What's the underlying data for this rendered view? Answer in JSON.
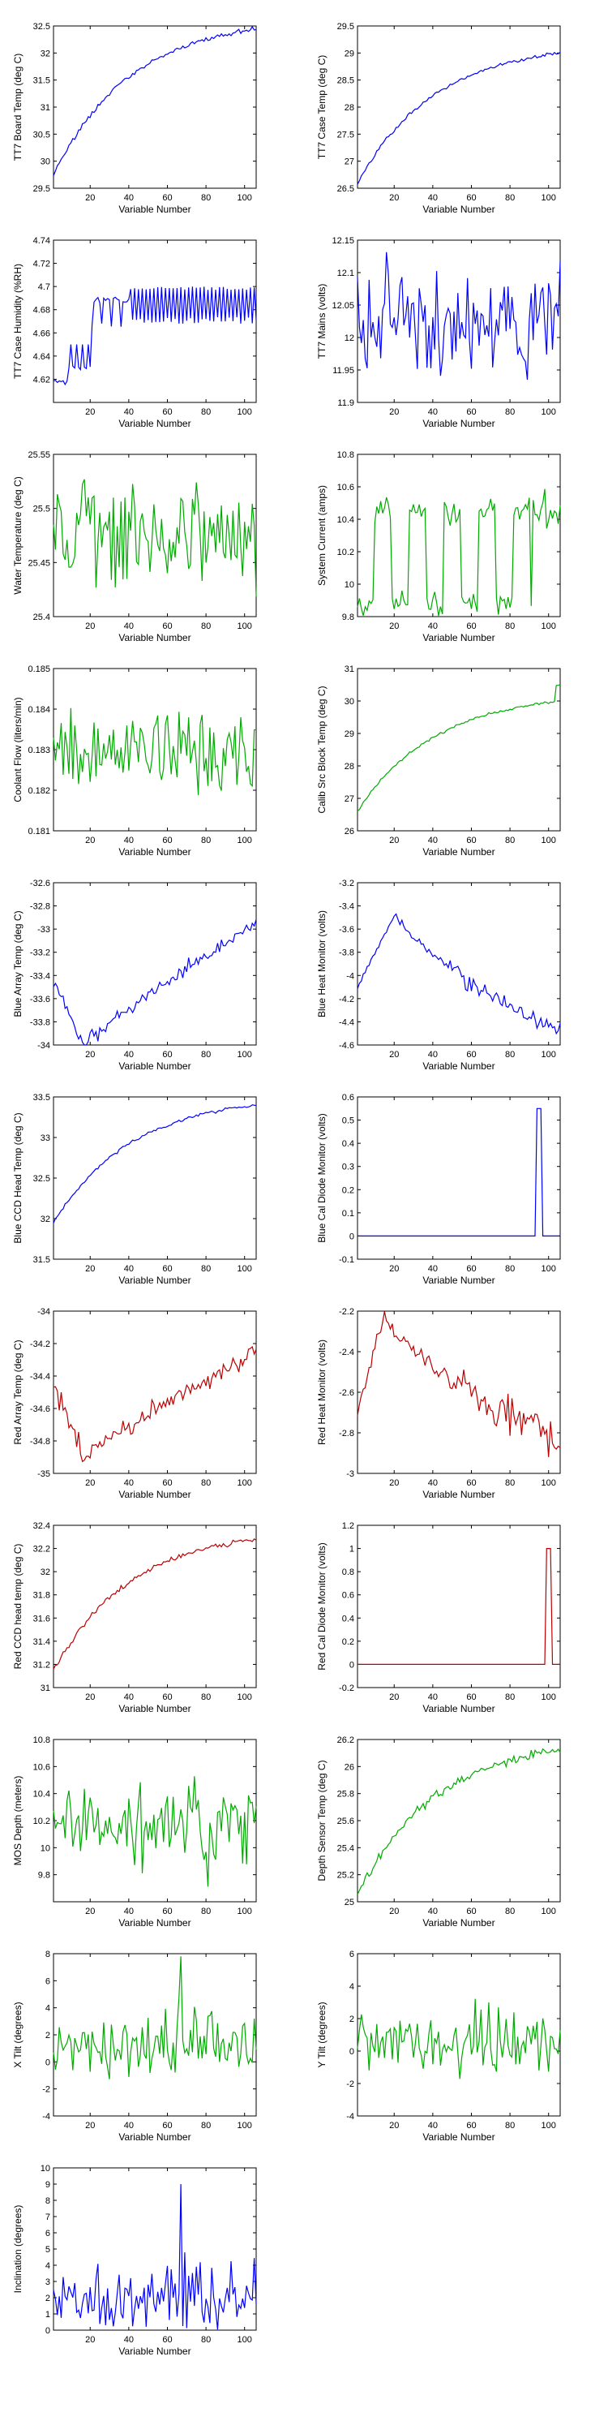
{
  "series_colors": {
    "blue": "#0000ff",
    "green": "#00aa00",
    "red": "#bb0000"
  },
  "chart_data": [
    {
      "id": "tt7-board-temp",
      "type": "line",
      "color": "blue",
      "ylabel": "TT7 Board Temp (deg C)",
      "xlabel": "Variable Number",
      "xlim": [
        1,
        106
      ],
      "xticks": [
        20,
        40,
        60,
        80,
        100
      ],
      "ylim": [
        29.5,
        32.5
      ],
      "yticks": [
        29.5,
        30,
        30.5,
        31,
        31.5,
        32,
        32.5
      ],
      "profile": "rise",
      "start": 29.75,
      "end": 32.45,
      "noise": 0.04
    },
    {
      "id": "tt7-case-temp",
      "type": "line",
      "color": "blue",
      "ylabel": "TT7 Case Temp (deg C)",
      "xlabel": "Variable Number",
      "xlim": [
        1,
        106
      ],
      "xticks": [
        20,
        40,
        60,
        80,
        100
      ],
      "ylim": [
        26.5,
        29.5
      ],
      "yticks": [
        26.5,
        27,
        27.5,
        28,
        28.5,
        29,
        29.5
      ],
      "profile": "rise",
      "start": 26.6,
      "end": 29.0,
      "noise": 0.03
    },
    {
      "id": "tt7-case-humidity",
      "type": "line",
      "color": "blue",
      "ylabel": "TT7 Case Humidity (%RH)",
      "xlabel": "Variable Number",
      "xlim": [
        1,
        106
      ],
      "xticks": [
        20,
        40,
        60,
        80,
        100
      ],
      "ylim": [
        4.6,
        4.74
      ],
      "yticks": [
        4.62,
        4.64,
        4.66,
        4.68,
        4.7,
        4.72,
        4.74
      ],
      "profile": "humidity"
    },
    {
      "id": "tt7-mains",
      "type": "line",
      "color": "blue",
      "ylabel": "TT7 Mains (volts)",
      "xlabel": "Variable Number",
      "xlim": [
        1,
        106
      ],
      "xticks": [
        20,
        40,
        60,
        80,
        100
      ],
      "ylim": [
        11.9,
        12.15
      ],
      "yticks": [
        11.9,
        11.95,
        12,
        12.05,
        12.1,
        12.15
      ],
      "profile": "noise",
      "mean": 12.03,
      "amp": 0.09
    },
    {
      "id": "water-temperature",
      "type": "line",
      "color": "green",
      "ylabel": "Water Temperature (deg C)",
      "xlabel": "Variable Number",
      "xlim": [
        1,
        106
      ],
      "xticks": [
        20,
        40,
        60,
        80,
        100
      ],
      "ylim": [
        25.4,
        25.55
      ],
      "yticks": [
        25.4,
        25.45,
        25.5,
        25.55
      ],
      "profile": "noise",
      "mean": 25.475,
      "amp": 0.06
    },
    {
      "id": "system-current",
      "type": "line",
      "color": "green",
      "ylabel": "System Current (amps)",
      "xlabel": "Variable Number",
      "xlim": [
        1,
        106
      ],
      "xticks": [
        20,
        40,
        60,
        80,
        100
      ],
      "ylim": [
        9.8,
        10.8
      ],
      "yticks": [
        9.8,
        10,
        10.2,
        10.4,
        10.6,
        10.8
      ],
      "profile": "square",
      "low": 9.88,
      "high": 10.45
    },
    {
      "id": "coolant-flow",
      "type": "line",
      "color": "green",
      "ylabel": "Coolant Flow (liters/min)",
      "xlabel": "Variable Number",
      "xlim": [
        1,
        106
      ],
      "xticks": [
        20,
        40,
        60,
        80,
        100
      ],
      "ylim": [
        0.181,
        0.185
      ],
      "yticks": [
        0.181,
        0.182,
        0.183,
        0.184,
        0.185
      ],
      "profile": "noise",
      "mean": 0.183,
      "amp": 0.0011
    },
    {
      "id": "calib-src-block-temp",
      "type": "line",
      "color": "green",
      "ylabel": "Calib Src Block Temp (deg C)",
      "xlabel": "Variable Number",
      "xlim": [
        1,
        106
      ],
      "xticks": [
        20,
        40,
        60,
        80,
        100
      ],
      "ylim": [
        26,
        31
      ],
      "yticks": [
        26,
        27,
        28,
        29,
        30,
        31
      ],
      "profile": "rise",
      "start": 26.6,
      "end": 30.0,
      "noise": 0.04,
      "endJump": 30.5
    },
    {
      "id": "blue-array-temp",
      "type": "line",
      "color": "blue",
      "ylabel": "Blue Array Temp (deg C)",
      "xlabel": "Variable Number",
      "xlim": [
        1,
        106
      ],
      "xticks": [
        20,
        40,
        60,
        80,
        100
      ],
      "ylim": [
        -34,
        -32.6
      ],
      "yticks": [
        -34,
        -33.8,
        -33.6,
        -33.4,
        -33.2,
        -33,
        -32.8,
        -32.6
      ],
      "profile": "dip",
      "a": -33.45,
      "b": -34.0,
      "c": -32.95,
      "noise": 0.06
    },
    {
      "id": "blue-heat-monitor",
      "type": "line",
      "color": "blue",
      "ylabel": "Blue Heat Monitor (volts)",
      "xlabel": "Variable Number",
      "xlim": [
        1,
        106
      ],
      "xticks": [
        20,
        40,
        60,
        80,
        100
      ],
      "ylim": [
        -4.6,
        -3.2
      ],
      "yticks": [
        -4.6,
        -4.4,
        -4.2,
        -4,
        -3.8,
        -3.6,
        -3.4,
        -3.2
      ],
      "profile": "peak",
      "a": -4.1,
      "b": -3.45,
      "c": -4.5,
      "peakAt": 20,
      "noise": 0.05
    },
    {
      "id": "blue-ccd-head-temp",
      "type": "line",
      "color": "blue",
      "ylabel": "Blue CCD Head Temp (deg C)",
      "xlabel": "Variable Number",
      "xlim": [
        1,
        106
      ],
      "xticks": [
        20,
        40,
        60,
        80,
        100
      ],
      "ylim": [
        31.5,
        33.5
      ],
      "yticks": [
        31.5,
        32,
        32.5,
        33,
        33.5
      ],
      "profile": "rise",
      "start": 31.95,
      "end": 33.4,
      "noise": 0.02
    },
    {
      "id": "blue-cal-diode-monitor",
      "type": "line",
      "color": "blue",
      "ylabel": "Blue Cal Diode Monitor (volts)",
      "xlabel": "Variable Number",
      "xlim": [
        1,
        106
      ],
      "xticks": [
        20,
        40,
        60,
        80,
        100
      ],
      "ylim": [
        -0.1,
        0.6
      ],
      "yticks": [
        -0.1,
        0,
        0.1,
        0.2,
        0.3,
        0.4,
        0.5,
        0.6
      ],
      "profile": "pulse",
      "base": 0,
      "top": 0.55,
      "pulseFrom": 93,
      "pulseTo": 95
    },
    {
      "id": "red-array-temp",
      "type": "line",
      "color": "red",
      "ylabel": "Red Array Temp (deg C)",
      "xlabel": "Variable Number",
      "xlim": [
        1,
        106
      ],
      "xticks": [
        20,
        40,
        60,
        80,
        100
      ],
      "ylim": [
        -35,
        -34
      ],
      "yticks": [
        -35,
        -34.8,
        -34.6,
        -34.4,
        -34.2,
        -34
      ],
      "profile": "dip",
      "a": -34.45,
      "b": -34.9,
      "c": -34.25,
      "noise": 0.06
    },
    {
      "id": "red-heat-monitor",
      "type": "line",
      "color": "red",
      "ylabel": "Red Heat Monitor (volts)",
      "xlabel": "Variable Number",
      "xlim": [
        1,
        106
      ],
      "xticks": [
        20,
        40,
        60,
        80,
        100
      ],
      "ylim": [
        -3,
        -2.2
      ],
      "yticks": [
        -3,
        -2.8,
        -2.6,
        -2.4,
        -2.2
      ],
      "profile": "peak",
      "a": -2.7,
      "b": -2.22,
      "c": -2.85,
      "peakAt": 14,
      "noise": 0.07
    },
    {
      "id": "red-ccd-head-temp",
      "type": "line",
      "color": "red",
      "ylabel": "Red CCD head temp (deg C)",
      "xlabel": "Variable Number",
      "xlim": [
        1,
        106
      ],
      "xticks": [
        20,
        40,
        60,
        80,
        100
      ],
      "ylim": [
        31,
        32.4
      ],
      "yticks": [
        31,
        31.2,
        31.4,
        31.6,
        31.8,
        32,
        32.2,
        32.4
      ],
      "profile": "rise",
      "start": 31.15,
      "end": 32.28,
      "noise": 0.02
    },
    {
      "id": "red-cal-diode-monitor",
      "type": "line",
      "color": "red",
      "ylabel": "Red Cal Diode Monitor (volts)",
      "xlabel": "Variable Number",
      "xlim": [
        1,
        106
      ],
      "xticks": [
        20,
        40,
        60,
        80,
        100
      ],
      "ylim": [
        -0.2,
        1.2
      ],
      "yticks": [
        -0.2,
        0,
        0.2,
        0.4,
        0.6,
        0.8,
        1,
        1.2
      ],
      "profile": "pulse",
      "base": 0,
      "top": 1.0,
      "pulseFrom": 98,
      "pulseTo": 100
    },
    {
      "id": "mos-depth",
      "type": "line",
      "color": "green",
      "ylabel": "MOS Depth (meters)",
      "xlabel": "Variable Number",
      "xlim": [
        1,
        106
      ],
      "xticks": [
        20,
        40,
        60,
        80,
        100
      ],
      "ylim": [
        9.6,
        10.8
      ],
      "yticks": [
        9.8,
        10,
        10.2,
        10.4,
        10.6,
        10.8
      ],
      "profile": "noise",
      "mean": 10.15,
      "amp": 0.35
    },
    {
      "id": "depth-sensor-temp",
      "type": "line",
      "color": "green",
      "ylabel": "Depth Sensor Temp (deg C)",
      "xlabel": "Variable Number",
      "xlim": [
        1,
        106
      ],
      "xticks": [
        20,
        40,
        60,
        80,
        100
      ],
      "ylim": [
        25,
        26.2
      ],
      "yticks": [
        25,
        25.2,
        25.4,
        25.6,
        25.8,
        26,
        26.2
      ],
      "profile": "rise",
      "start": 25.05,
      "end": 26.12,
      "noise": 0.03
    },
    {
      "id": "x-tilt",
      "type": "line",
      "color": "green",
      "ylabel": "X Tilt (degrees)",
      "xlabel": "Variable Number",
      "xlim": [
        1,
        106
      ],
      "xticks": [
        20,
        40,
        60,
        80,
        100
      ],
      "ylim": [
        -4,
        8
      ],
      "yticks": [
        -4,
        -2,
        0,
        2,
        4,
        6,
        8
      ],
      "profile": "spiky",
      "mean": 1.2,
      "amp": 2.2,
      "spike": 7.8,
      "spikeAt": 66
    },
    {
      "id": "y-tilt",
      "type": "line",
      "color": "green",
      "ylabel": "Y Tilt (degrees)",
      "xlabel": "Variable Number",
      "xlim": [
        1,
        106
      ],
      "xticks": [
        20,
        40,
        60,
        80,
        100
      ],
      "ylim": [
        -4,
        6
      ],
      "yticks": [
        -4,
        -2,
        0,
        2,
        4,
        6
      ],
      "profile": "spiky",
      "mean": 0.3,
      "amp": 1.8,
      "spike": 5.2,
      "spikeAt": 68
    },
    {
      "id": "inclination",
      "type": "line",
      "color": "blue",
      "ylabel": "Inclination (degrees)",
      "xlabel": "Variable Number",
      "xlim": [
        1,
        106
      ],
      "xticks": [
        20,
        40,
        60,
        80,
        100
      ],
      "ylim": [
        0,
        10
      ],
      "yticks": [
        0,
        1,
        2,
        3,
        4,
        5,
        6,
        7,
        8,
        9,
        10
      ],
      "profile": "incl",
      "mean": 2.0,
      "amp": 2.0,
      "spike": 9.0,
      "spikeAt": 66
    }
  ]
}
